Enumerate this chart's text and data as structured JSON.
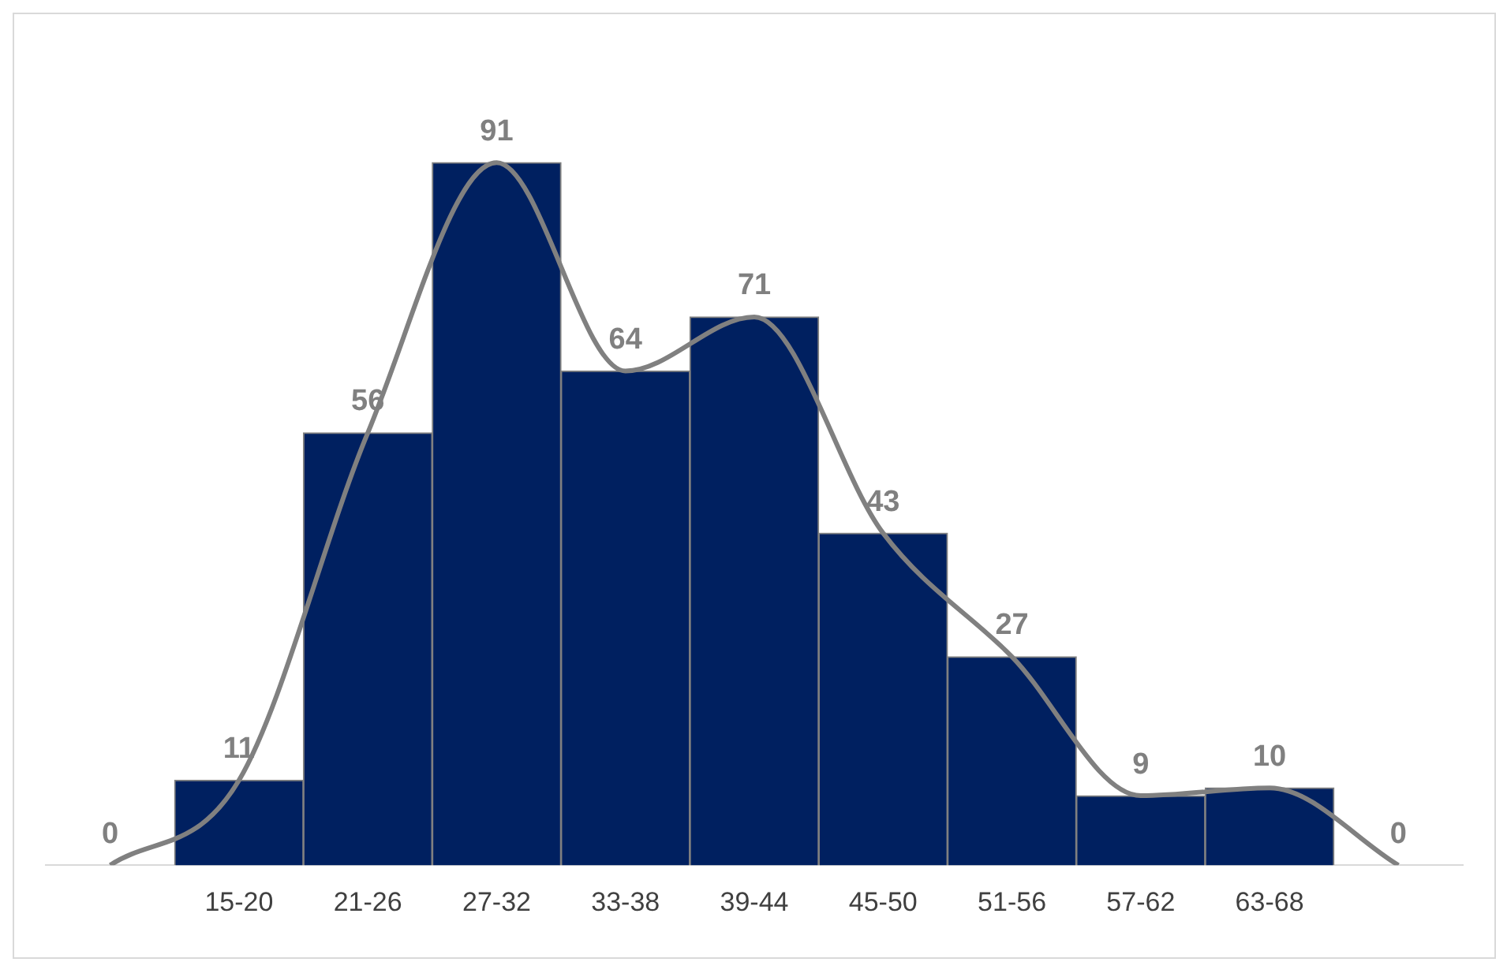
{
  "chart_data": {
    "type": "bar",
    "categories": [
      null,
      "15-20",
      "21-26",
      "27-32",
      "33-38",
      "39-44",
      "45-50",
      "51-56",
      "57-62",
      "63-68",
      null
    ],
    "series": [
      {
        "color": "#002060",
        "values": [
          null,
          11,
          56,
          91,
          64,
          71,
          43,
          27,
          9,
          10,
          null
        ]
      },
      {
        "type": "line",
        "color": "#808080",
        "values": [
          0,
          11,
          56,
          91,
          64,
          71,
          43,
          27,
          9,
          10,
          0
        ],
        "value_labels": [
          "0",
          "11",
          "56",
          "91",
          "64",
          "71",
          "43",
          "27",
          "9",
          "10",
          "0"
        ]
      }
    ],
    "grid": false,
    "legend": false,
    "marker": "none",
    "tick_labels": "x"
  }
}
